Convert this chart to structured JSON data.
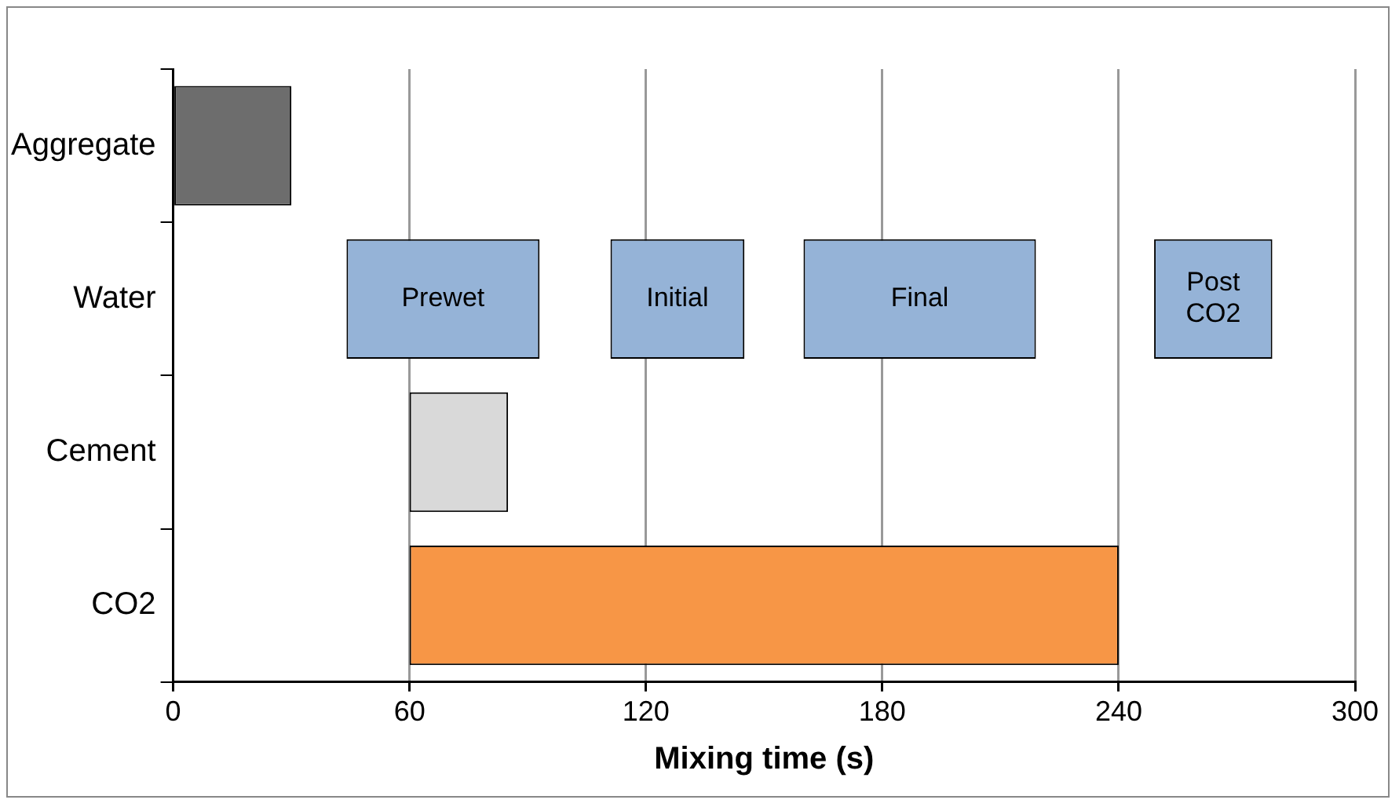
{
  "chart_data": {
    "type": "bar",
    "orientation": "horizontal",
    "xlabel": "Mixing time (s)",
    "categories": [
      "Aggregate",
      "Water",
      "Cement",
      "CO2"
    ],
    "series": [
      {
        "color": "#6d6d6d",
        "values": [
          30,
          null,
          null,
          null
        ],
        "base": [
          0,
          null,
          null,
          null
        ]
      },
      {
        "color": "#95b3d7",
        "values": [
          null,
          49,
          null,
          null
        ],
        "base": [
          null,
          44,
          null,
          null
        ]
      },
      {
        "color": "#95b3d7",
        "values": [
          null,
          34,
          null,
          null
        ],
        "base": [
          null,
          111,
          null,
          null
        ]
      },
      {
        "color": "#95b3d7",
        "values": [
          null,
          59,
          null,
          null
        ],
        "base": [
          null,
          160,
          null,
          null
        ]
      },
      {
        "color": "#95b3d7",
        "values": [
          null,
          30,
          null,
          null
        ],
        "base": [
          null,
          249,
          null,
          null
        ]
      },
      {
        "color": "#d9d9d9",
        "values": [
          null,
          null,
          25,
          null
        ],
        "base": [
          null,
          null,
          60,
          null
        ]
      },
      {
        "color": "#f79646",
        "values": [
          null,
          null,
          null,
          180
        ],
        "base": [
          null,
          null,
          null,
          60
        ]
      }
    ],
    "annotations": [
      {
        "text": "Prewet",
        "x": 68.5,
        "y": "Water"
      },
      {
        "text": "Initial",
        "x": 128,
        "y": "Water"
      },
      {
        "text": "Final",
        "x": 189.5,
        "y": "Water"
      },
      {
        "text": "Post\nCO2",
        "x": 264,
        "y": "Water"
      }
    ],
    "xlim": [
      0,
      300
    ],
    "xticks": [
      0,
      60,
      120,
      180,
      240,
      300
    ],
    "grid": "x",
    "legend": false
  }
}
